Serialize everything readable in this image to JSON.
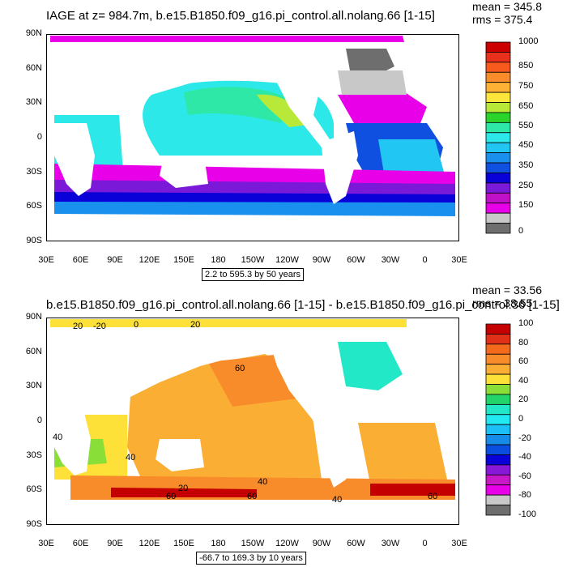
{
  "chart_data": [
    {
      "type": "heatmap",
      "title": "IAGE at z= 984.7m, b.e15.B1850.f09_g16.pi_control.all.nolang.66 [1-15]",
      "stats": [
        "mean = 345.8",
        "rms = 375.4"
      ],
      "y_ticks": [
        "90N",
        "60N",
        "30N",
        "0",
        "30S",
        "60S",
        "90S"
      ],
      "x_ticks": [
        "30E",
        "60E",
        "90E",
        "120E",
        "150E",
        "180",
        "150W",
        "120W",
        "90W",
        "60W",
        "30W",
        "0",
        "30E"
      ],
      "range_label": "2.2 to 595.3 by 50 years",
      "colorbar_labels": [
        "1000",
        "850",
        "750",
        "650",
        "550",
        "450",
        "350",
        "250",
        "150",
        "0"
      ],
      "colorbar_colors": [
        "#cc0000",
        "#e8301c",
        "#f85a1e",
        "#fb8c2c",
        "#fdb236",
        "#fde63c",
        "#b8e838",
        "#2bd42a",
        "#2ee8a8",
        "#2ce8e8",
        "#22c6f2",
        "#1a90ee",
        "#1050e0",
        "#0a00d8",
        "#7a1ad8",
        "#c010c8",
        "#e800e8",
        "#c8c8c8",
        "#6e6e6e"
      ]
    },
    {
      "type": "heatmap",
      "title": "b.e15.B1850.f09_g16.pi_control.all.nolang.66 [1-15] - b.e15.B1850.f09_g16.pi_control.36 [1-15]",
      "stats": [
        "mean = 33.56",
        "rms = 38.55"
      ],
      "y_ticks": [
        "90N",
        "60N",
        "30N",
        "0",
        "30S",
        "60S",
        "90S"
      ],
      "x_ticks": [
        "30E",
        "60E",
        "90E",
        "120E",
        "150E",
        "180",
        "150W",
        "120W",
        "90W",
        "60W",
        "30W",
        "0",
        "30E"
      ],
      "range_label": "-66.7 to 169.3 by 10 years",
      "contour_labels": [
        "20",
        "-20",
        "0",
        "20",
        "60",
        "40",
        "40",
        "20",
        "40",
        "40",
        "60",
        "60",
        "60"
      ],
      "colorbar_labels": [
        "100",
        "80",
        "60",
        "40",
        "20",
        "0",
        "-20",
        "-40",
        "-60",
        "-80",
        "-100"
      ],
      "colorbar_colors": [
        "#c40000",
        "#e03018",
        "#f46a1c",
        "#f88c2a",
        "#fbae34",
        "#fde038",
        "#8ade38",
        "#22d46a",
        "#22e8c8",
        "#22e8f2",
        "#1cc0f6",
        "#168ce8",
        "#0a4ee0",
        "#0a00d8",
        "#8818d8",
        "#c818c8",
        "#e800e8",
        "#c8c8c8",
        "#6e6e6e"
      ]
    }
  ]
}
